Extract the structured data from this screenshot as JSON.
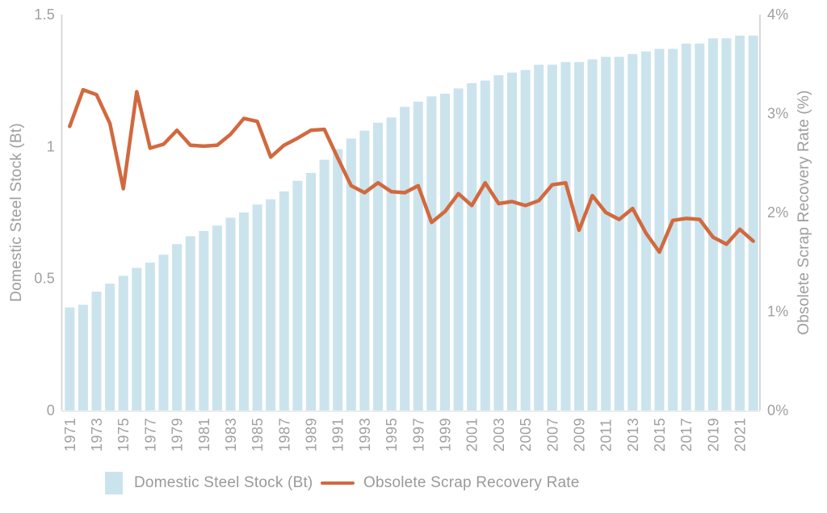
{
  "chart_data": {
    "type": "combo",
    "title": "",
    "x": [
      1971,
      1972,
      1973,
      1974,
      1975,
      1976,
      1977,
      1978,
      1979,
      1980,
      1981,
      1982,
      1983,
      1984,
      1985,
      1986,
      1987,
      1988,
      1989,
      1990,
      1991,
      1992,
      1993,
      1994,
      1995,
      1996,
      1997,
      1998,
      1999,
      2000,
      2001,
      2002,
      2003,
      2004,
      2005,
      2006,
      2007,
      2008,
      2009,
      2010,
      2011,
      2012,
      2013,
      2014,
      2015,
      2016,
      2017,
      2018,
      2019,
      2020,
      2021,
      2022
    ],
    "x_tick_labels": [
      "1971",
      "1973",
      "1975",
      "1977",
      "1979",
      "1981",
      "1983",
      "1985",
      "1987",
      "1989",
      "1991",
      "1993",
      "1995",
      "1997",
      "1999",
      "2001",
      "2003",
      "2005",
      "2007",
      "2009",
      "2011",
      "2013",
      "2015",
      "2017",
      "2019",
      "2021"
    ],
    "series": [
      {
        "name": "Domestic Steel Stock (Bt)",
        "type": "bar",
        "axis": "left",
        "color": "#cbe3ed",
        "values": [
          0.39,
          0.4,
          0.45,
          0.48,
          0.51,
          0.54,
          0.56,
          0.59,
          0.63,
          0.66,
          0.68,
          0.7,
          0.73,
          0.75,
          0.78,
          0.8,
          0.83,
          0.87,
          0.9,
          0.95,
          0.99,
          1.03,
          1.06,
          1.09,
          1.11,
          1.15,
          1.17,
          1.19,
          1.2,
          1.22,
          1.24,
          1.25,
          1.27,
          1.28,
          1.29,
          1.31,
          1.31,
          1.32,
          1.32,
          1.33,
          1.34,
          1.34,
          1.35,
          1.36,
          1.37,
          1.37,
          1.39,
          1.39,
          1.41,
          1.41,
          1.42,
          1.42
        ]
      },
      {
        "name": "Obsolete Scrap Recovery Rate",
        "type": "line",
        "axis": "right",
        "color": "#d2693e",
        "values": [
          2.87,
          3.24,
          3.19,
          2.9,
          2.24,
          3.22,
          2.65,
          2.69,
          2.83,
          2.68,
          2.67,
          2.68,
          2.79,
          2.95,
          2.92,
          2.56,
          2.68,
          2.75,
          2.83,
          2.84,
          2.55,
          2.27,
          2.2,
          2.3,
          2.21,
          2.2,
          2.27,
          1.9,
          2.01,
          2.19,
          2.07,
          2.3,
          2.09,
          2.11,
          2.07,
          2.12,
          2.28,
          2.3,
          1.82,
          2.17,
          2.0,
          1.93,
          2.04,
          1.79,
          1.6,
          1.92,
          1.94,
          1.93,
          1.75,
          1.68,
          1.83,
          1.71
        ]
      }
    ],
    "left_axis": {
      "label": "Domestic Steel Stock (Bt)",
      "ticks": [
        "0",
        "0.5",
        "1",
        "1.5"
      ],
      "range": [
        0,
        1.5
      ]
    },
    "right_axis": {
      "label": "Obsolete Scrap Recovery Rate (%)",
      "ticks": [
        "0%",
        "1%",
        "2%",
        "3%",
        "4%"
      ],
      "range": [
        0,
        4
      ]
    },
    "legend": [
      {
        "label": "Domestic Steel Stock (Bt)",
        "swatch": "square",
        "color": "#cbe3ed"
      },
      {
        "label": "Obsolete Scrap Recovery Rate",
        "swatch": "line",
        "color": "#d2693e"
      }
    ],
    "grid": false,
    "legend_position": "bottom"
  },
  "colors": {
    "bar": "#cbe3ed",
    "line": "#d2693e",
    "tick_text": "#a0a0a0",
    "axis_line": "#d9d9d9",
    "background": "#ffffff"
  }
}
